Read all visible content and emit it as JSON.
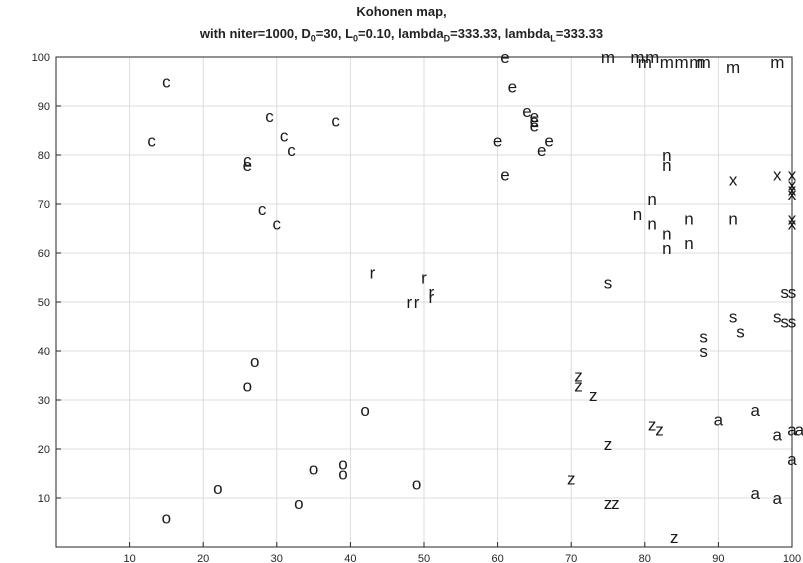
{
  "chart_data": {
    "type": "scatter",
    "title": "Kohonen map,",
    "title_line2_parts": [
      {
        "text": "with niter=1000, D",
        "sub": false
      },
      {
        "text": "0",
        "sub": true
      },
      {
        "text": "=30, L",
        "sub": false
      },
      {
        "text": "0",
        "sub": true
      },
      {
        "text": "=0.10, lambda",
        "sub": false
      },
      {
        "text": "D",
        "sub": true
      },
      {
        "text": "=333.33, lambda",
        "sub": false
      },
      {
        "text": "L",
        "sub": true
      },
      {
        "text": "=333.33",
        "sub": false
      }
    ],
    "xlabel": "",
    "ylabel": "",
    "xlim": [
      0,
      100
    ],
    "ylim": [
      0,
      100
    ],
    "x_ticks": [
      10,
      20,
      30,
      40,
      50,
      60,
      70,
      80,
      90,
      100
    ],
    "y_ticks": [
      10,
      20,
      30,
      40,
      50,
      60,
      70,
      80,
      90,
      100
    ],
    "grid": true,
    "marker_color": "#1a1a1a",
    "grid_color": "#dcdcdc",
    "points": [
      {
        "x": 15,
        "y": 95,
        "label": "c"
      },
      {
        "x": 13,
        "y": 83,
        "label": "c"
      },
      {
        "x": 26,
        "y": 79,
        "label": "c"
      },
      {
        "x": 29,
        "y": 88,
        "label": "c"
      },
      {
        "x": 31,
        "y": 84,
        "label": "c"
      },
      {
        "x": 32,
        "y": 81,
        "label": "c"
      },
      {
        "x": 38,
        "y": 87,
        "label": "c"
      },
      {
        "x": 28,
        "y": 69,
        "label": "c"
      },
      {
        "x": 30,
        "y": 66,
        "label": "c"
      },
      {
        "x": 26,
        "y": 78,
        "label": "e"
      },
      {
        "x": 61,
        "y": 100,
        "label": "e"
      },
      {
        "x": 62,
        "y": 94,
        "label": "e"
      },
      {
        "x": 64,
        "y": 89,
        "label": "e"
      },
      {
        "x": 65,
        "y": 88,
        "label": "e"
      },
      {
        "x": 65,
        "y": 87,
        "label": "e"
      },
      {
        "x": 65,
        "y": 86,
        "label": "e"
      },
      {
        "x": 60,
        "y": 83,
        "label": "e"
      },
      {
        "x": 67,
        "y": 83,
        "label": "e"
      },
      {
        "x": 66,
        "y": 81,
        "label": "e"
      },
      {
        "x": 61,
        "y": 76,
        "label": "e"
      },
      {
        "x": 75,
        "y": 100,
        "label": "m"
      },
      {
        "x": 79,
        "y": 100,
        "label": "m"
      },
      {
        "x": 81,
        "y": 100,
        "label": "m"
      },
      {
        "x": 80,
        "y": 99,
        "label": "m"
      },
      {
        "x": 83,
        "y": 99,
        "label": "m"
      },
      {
        "x": 85,
        "y": 99,
        "label": "m"
      },
      {
        "x": 87,
        "y": 99,
        "label": "m"
      },
      {
        "x": 88,
        "y": 99,
        "label": "m"
      },
      {
        "x": 92,
        "y": 98,
        "label": "m"
      },
      {
        "x": 98,
        "y": 99,
        "label": "m"
      },
      {
        "x": 83,
        "y": 80,
        "label": "n"
      },
      {
        "x": 83,
        "y": 78,
        "label": "n"
      },
      {
        "x": 81,
        "y": 71,
        "label": "n"
      },
      {
        "x": 79,
        "y": 68,
        "label": "n"
      },
      {
        "x": 81,
        "y": 66,
        "label": "n"
      },
      {
        "x": 83,
        "y": 64,
        "label": "n"
      },
      {
        "x": 83,
        "y": 61,
        "label": "n"
      },
      {
        "x": 86,
        "y": 67,
        "label": "n"
      },
      {
        "x": 86,
        "y": 62,
        "label": "n"
      },
      {
        "x": 92,
        "y": 67,
        "label": "n"
      },
      {
        "x": 92,
        "y": 75,
        "label": "x"
      },
      {
        "x": 98,
        "y": 76,
        "label": "x"
      },
      {
        "x": 100,
        "y": 76,
        "label": "x"
      },
      {
        "x": 100,
        "y": 74,
        "label": "x"
      },
      {
        "x": 100,
        "y": 73,
        "label": "x"
      },
      {
        "x": 100,
        "y": 72,
        "label": "x"
      },
      {
        "x": 100,
        "y": 67,
        "label": "x"
      },
      {
        "x": 100,
        "y": 66,
        "label": "x"
      },
      {
        "x": 43,
        "y": 56,
        "label": "r"
      },
      {
        "x": 50,
        "y": 55,
        "label": "r"
      },
      {
        "x": 48,
        "y": 50,
        "label": "r"
      },
      {
        "x": 49,
        "y": 50,
        "label": "r"
      },
      {
        "x": 51,
        "y": 52,
        "label": "r"
      },
      {
        "x": 51,
        "y": 51,
        "label": "r"
      },
      {
        "x": 75,
        "y": 54,
        "label": "s"
      },
      {
        "x": 92,
        "y": 47,
        "label": "s"
      },
      {
        "x": 93,
        "y": 44,
        "label": "s"
      },
      {
        "x": 88,
        "y": 43,
        "label": "s"
      },
      {
        "x": 88,
        "y": 40,
        "label": "s"
      },
      {
        "x": 99,
        "y": 52,
        "label": "s"
      },
      {
        "x": 100,
        "y": 52,
        "label": "s"
      },
      {
        "x": 98,
        "y": 47,
        "label": "s"
      },
      {
        "x": 99,
        "y": 46,
        "label": "s"
      },
      {
        "x": 100,
        "y": 46,
        "label": "s"
      },
      {
        "x": 71,
        "y": 35,
        "label": "z"
      },
      {
        "x": 71,
        "y": 33,
        "label": "z"
      },
      {
        "x": 73,
        "y": 31,
        "label": "z"
      },
      {
        "x": 81,
        "y": 25,
        "label": "z"
      },
      {
        "x": 82,
        "y": 24,
        "label": "z"
      },
      {
        "x": 75,
        "y": 21,
        "label": "z"
      },
      {
        "x": 70,
        "y": 14,
        "label": "z"
      },
      {
        "x": 75,
        "y": 9,
        "label": "z"
      },
      {
        "x": 76,
        "y": 9,
        "label": "z"
      },
      {
        "x": 84,
        "y": 2,
        "label": "z"
      },
      {
        "x": 90,
        "y": 26,
        "label": "a"
      },
      {
        "x": 95,
        "y": 28,
        "label": "a"
      },
      {
        "x": 98,
        "y": 23,
        "label": "a"
      },
      {
        "x": 100,
        "y": 24,
        "label": "a"
      },
      {
        "x": 101,
        "y": 24,
        "label": "a"
      },
      {
        "x": 100,
        "y": 18,
        "label": "a"
      },
      {
        "x": 95,
        "y": 11,
        "label": "a"
      },
      {
        "x": 98,
        "y": 10,
        "label": "a"
      },
      {
        "x": 27,
        "y": 38,
        "label": "o"
      },
      {
        "x": 26,
        "y": 33,
        "label": "o"
      },
      {
        "x": 42,
        "y": 28,
        "label": "o"
      },
      {
        "x": 35,
        "y": 16,
        "label": "o"
      },
      {
        "x": 39,
        "y": 17,
        "label": "o"
      },
      {
        "x": 39,
        "y": 15,
        "label": "o"
      },
      {
        "x": 49,
        "y": 13,
        "label": "o"
      },
      {
        "x": 22,
        "y": 12,
        "label": "o"
      },
      {
        "x": 33,
        "y": 9,
        "label": "o"
      },
      {
        "x": 15,
        "y": 6,
        "label": "o"
      }
    ]
  }
}
